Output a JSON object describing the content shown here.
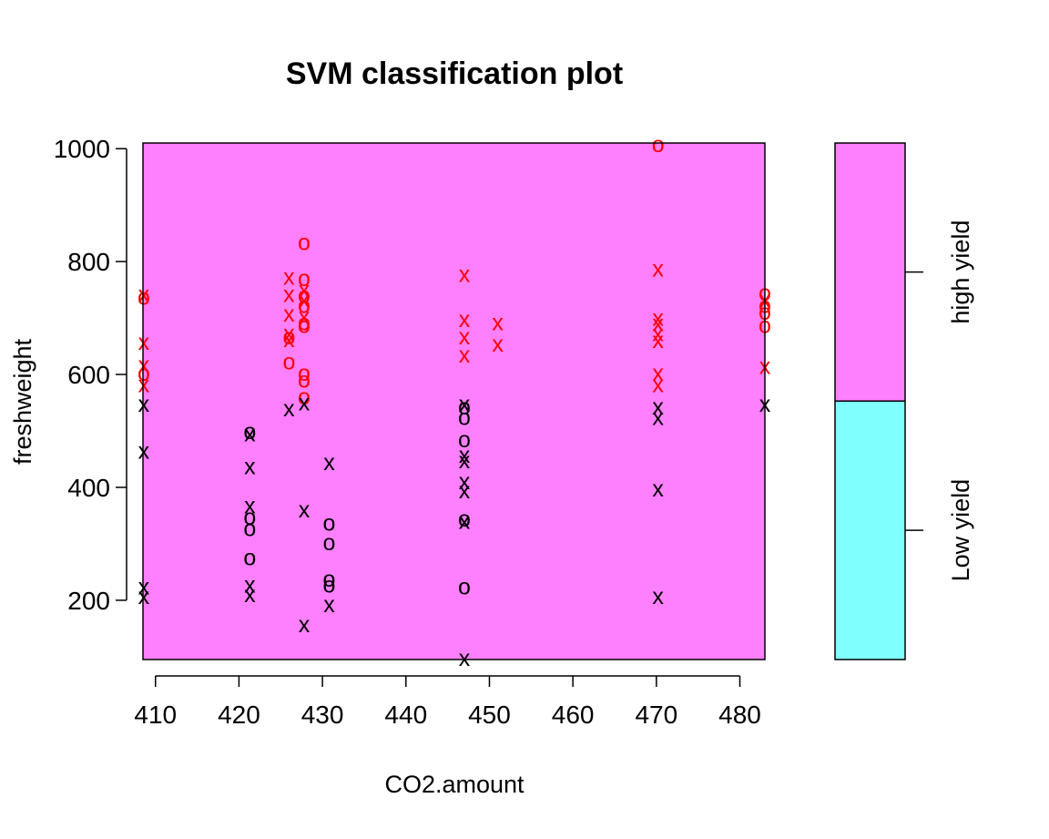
{
  "chart_data": {
    "type": "scatter",
    "title": "SVM classification plot",
    "xlabel": "CO2.amount",
    "ylabel": "freshweight",
    "xlim": [
      408.5,
      483
    ],
    "ylim": [
      95,
      1010
    ],
    "x_ticks": [
      410,
      420,
      430,
      440,
      450,
      460,
      470,
      480
    ],
    "y_ticks": [
      200,
      400,
      600,
      800,
      1000
    ],
    "x_tick_labels": [
      "410",
      "420",
      "430",
      "440",
      "450",
      "460",
      "470",
      "480"
    ],
    "y_tick_labels": [
      "200",
      "400",
      "600",
      "800",
      "1000"
    ],
    "grid": false,
    "regions": {
      "high_yield_color": "#FF80FF",
      "low_yield_color": "#80FFFF"
    },
    "legend": {
      "placement": "right",
      "labels": [
        "Low yield",
        "high yield"
      ],
      "boundary": 553,
      "colors": [
        "#80FFFF",
        "#FF80FF"
      ]
    },
    "marker_colors": {
      "high yield": "#FF0000",
      "Low yield": "#000000"
    },
    "series": [
      {
        "color": "#FF0000",
        "points": [
          {
            "x": 408.6,
            "y": 740,
            "symbol": "x"
          },
          {
            "x": 408.6,
            "y": 735,
            "symbol": "o"
          },
          {
            "x": 408.6,
            "y": 655,
            "symbol": "x"
          },
          {
            "x": 408.6,
            "y": 615,
            "symbol": "x"
          },
          {
            "x": 408.6,
            "y": 600,
            "symbol": "o"
          },
          {
            "x": 408.6,
            "y": 580,
            "symbol": "x"
          },
          {
            "x": 426,
            "y": 770,
            "symbol": "x"
          },
          {
            "x": 426,
            "y": 740,
            "symbol": "x"
          },
          {
            "x": 426,
            "y": 705,
            "symbol": "x"
          },
          {
            "x": 426,
            "y": 670,
            "symbol": "x"
          },
          {
            "x": 426,
            "y": 665,
            "symbol": "o"
          },
          {
            "x": 426,
            "y": 660,
            "symbol": "x"
          },
          {
            "x": 426,
            "y": 620,
            "symbol": "o"
          },
          {
            "x": 427.8,
            "y": 832,
            "symbol": "o"
          },
          {
            "x": 427.8,
            "y": 768,
            "symbol": "o"
          },
          {
            "x": 427.8,
            "y": 748,
            "symbol": "x"
          },
          {
            "x": 427.8,
            "y": 738,
            "symbol": "o"
          },
          {
            "x": 427.8,
            "y": 730,
            "symbol": "x"
          },
          {
            "x": 427.8,
            "y": 720,
            "symbol": "o"
          },
          {
            "x": 427.8,
            "y": 700,
            "symbol": "x"
          },
          {
            "x": 427.8,
            "y": 690,
            "symbol": "o"
          },
          {
            "x": 427.8,
            "y": 685,
            "symbol": "o"
          },
          {
            "x": 427.8,
            "y": 600,
            "symbol": "o"
          },
          {
            "x": 427.8,
            "y": 588,
            "symbol": "o"
          },
          {
            "x": 427.8,
            "y": 558,
            "symbol": "o"
          },
          {
            "x": 447,
            "y": 775,
            "symbol": "x"
          },
          {
            "x": 447,
            "y": 695,
            "symbol": "x"
          },
          {
            "x": 447,
            "y": 665,
            "symbol": "x"
          },
          {
            "x": 447,
            "y": 632,
            "symbol": "x"
          },
          {
            "x": 451,
            "y": 690,
            "symbol": "x"
          },
          {
            "x": 451,
            "y": 652,
            "symbol": "x"
          },
          {
            "x": 470.2,
            "y": 1005,
            "symbol": "o"
          },
          {
            "x": 470.2,
            "y": 785,
            "symbol": "x"
          },
          {
            "x": 470.2,
            "y": 698,
            "symbol": "x"
          },
          {
            "x": 470.2,
            "y": 688,
            "symbol": "x"
          },
          {
            "x": 470.2,
            "y": 670,
            "symbol": "x"
          },
          {
            "x": 470.2,
            "y": 658,
            "symbol": "x"
          },
          {
            "x": 470.2,
            "y": 600,
            "symbol": "x"
          },
          {
            "x": 470.2,
            "y": 580,
            "symbol": "x"
          },
          {
            "x": 483,
            "y": 742,
            "symbol": "o"
          },
          {
            "x": 483,
            "y": 730,
            "symbol": "x"
          },
          {
            "x": 483,
            "y": 720,
            "symbol": "o"
          },
          {
            "x": 483,
            "y": 708,
            "symbol": "o"
          },
          {
            "x": 483,
            "y": 685,
            "symbol": "o"
          },
          {
            "x": 483,
            "y": 612,
            "symbol": "x"
          }
        ]
      },
      {
        "color": "#000000",
        "points": [
          {
            "x": 408.6,
            "y": 545,
            "symbol": "x"
          },
          {
            "x": 408.6,
            "y": 462,
            "symbol": "x"
          },
          {
            "x": 408.6,
            "y": 222,
            "symbol": "x"
          },
          {
            "x": 408.6,
            "y": 205,
            "symbol": "x"
          },
          {
            "x": 421.3,
            "y": 497,
            "symbol": "o"
          },
          {
            "x": 421.3,
            "y": 493,
            "symbol": "x"
          },
          {
            "x": 421.3,
            "y": 435,
            "symbol": "x"
          },
          {
            "x": 421.3,
            "y": 365,
            "symbol": "x"
          },
          {
            "x": 421.3,
            "y": 345,
            "symbol": "o"
          },
          {
            "x": 421.3,
            "y": 325,
            "symbol": "o"
          },
          {
            "x": 421.3,
            "y": 273,
            "symbol": "o"
          },
          {
            "x": 421.3,
            "y": 225,
            "symbol": "x"
          },
          {
            "x": 421.3,
            "y": 208,
            "symbol": "x"
          },
          {
            "x": 426,
            "y": 537,
            "symbol": "x"
          },
          {
            "x": 427.8,
            "y": 548,
            "symbol": "x"
          },
          {
            "x": 427.8,
            "y": 358,
            "symbol": "x"
          },
          {
            "x": 427.8,
            "y": 155,
            "symbol": "x"
          },
          {
            "x": 430.8,
            "y": 442,
            "symbol": "x"
          },
          {
            "x": 430.8,
            "y": 335,
            "symbol": "o"
          },
          {
            "x": 430.8,
            "y": 300,
            "symbol": "o"
          },
          {
            "x": 430.8,
            "y": 235,
            "symbol": "o"
          },
          {
            "x": 430.8,
            "y": 225,
            "symbol": "o"
          },
          {
            "x": 430.8,
            "y": 190,
            "symbol": "x"
          },
          {
            "x": 447,
            "y": 545,
            "symbol": "x"
          },
          {
            "x": 447,
            "y": 540,
            "symbol": "o"
          },
          {
            "x": 447,
            "y": 522,
            "symbol": "o"
          },
          {
            "x": 447,
            "y": 482,
            "symbol": "o"
          },
          {
            "x": 447,
            "y": 455,
            "symbol": "x"
          },
          {
            "x": 447,
            "y": 445,
            "symbol": "x"
          },
          {
            "x": 447,
            "y": 408,
            "symbol": "x"
          },
          {
            "x": 447,
            "y": 392,
            "symbol": "x"
          },
          {
            "x": 447,
            "y": 342,
            "symbol": "o"
          },
          {
            "x": 447,
            "y": 338,
            "symbol": "x"
          },
          {
            "x": 447,
            "y": 222,
            "symbol": "o"
          },
          {
            "x": 447,
            "y": 95,
            "symbol": "x"
          },
          {
            "x": 470.2,
            "y": 540,
            "symbol": "x"
          },
          {
            "x": 470.2,
            "y": 522,
            "symbol": "x"
          },
          {
            "x": 470.2,
            "y": 395,
            "symbol": "x"
          },
          {
            "x": 470.2,
            "y": 205,
            "symbol": "x"
          },
          {
            "x": 483,
            "y": 545,
            "symbol": "x"
          }
        ]
      }
    ]
  }
}
